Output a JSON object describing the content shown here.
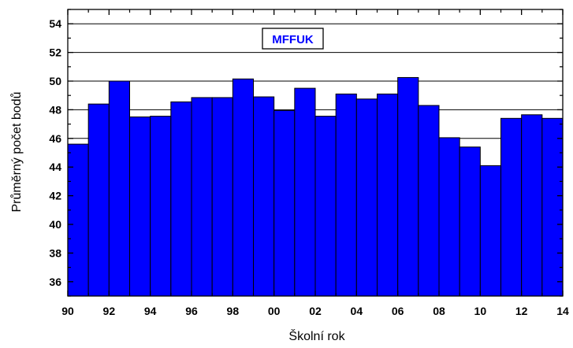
{
  "chart_data": {
    "type": "bar",
    "title": "",
    "legend_label": "MFFUK",
    "legend_placement": "top-center",
    "xlabel": "Školní rok",
    "ylabel": "Průměrný počet bodů",
    "x_tick_labels": [
      "90",
      "92",
      "94",
      "96",
      "98",
      "00",
      "02",
      "04",
      "06",
      "08",
      "10",
      "12",
      "14"
    ],
    "y_tick_labels": [
      "36",
      "38",
      "40",
      "42",
      "44",
      "46",
      "48",
      "50",
      "52",
      "54"
    ],
    "ylim": [
      35,
      55
    ],
    "x_range": [
      "1990",
      "2014"
    ],
    "grid": "horizontal",
    "bar_color": "#0000ff",
    "categories": [
      "1990",
      "1991",
      "1992",
      "1993",
      "1994",
      "1995",
      "1996",
      "1997",
      "1998",
      "1999",
      "2000",
      "2001",
      "2002",
      "2003",
      "2004",
      "2005",
      "2006",
      "2007",
      "2008",
      "2009",
      "2010",
      "2011",
      "2012",
      "2013"
    ],
    "values": [
      45.6,
      48.4,
      50.0,
      47.5,
      47.55,
      48.55,
      48.85,
      48.85,
      50.15,
      48.9,
      47.95,
      49.5,
      47.55,
      49.1,
      48.75,
      49.1,
      50.25,
      48.3,
      46.05,
      45.4,
      44.1,
      47.4,
      47.65,
      47.4
    ]
  }
}
